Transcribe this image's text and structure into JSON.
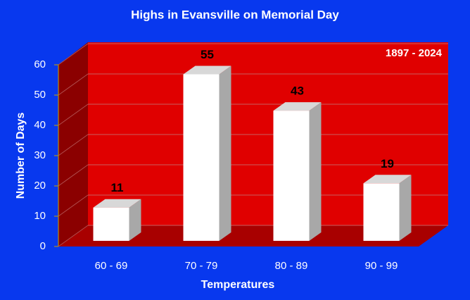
{
  "chart_data": {
    "type": "bar",
    "title": "Highs in Evansville on Memorial Day",
    "annotation": "1897 - 2024",
    "categories": [
      "60 - 69",
      "70 - 79",
      "80 - 89",
      "90 - 99"
    ],
    "values": [
      11,
      55,
      43,
      19
    ],
    "color": "#ffffff",
    "xlabel": "Temperatures",
    "ylabel": "Number of Days",
    "ylim": [
      0,
      60
    ],
    "yticks": [
      0,
      10,
      20,
      30,
      40,
      50,
      60
    ],
    "grid": true
  }
}
